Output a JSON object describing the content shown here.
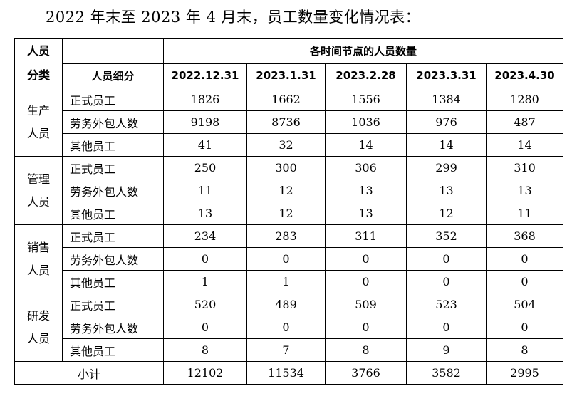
{
  "title": "2022 年末至 2023 年 4 月末，员工数量变化情况表：",
  "table": {
    "header": {
      "category_line1": "人员",
      "category_line2": "分类",
      "subcategory": "人员细分",
      "group": "各时间节点的人员数量",
      "dates": [
        "2022.12.31",
        "2023.1.31",
        "2023.2.28",
        "2023.3.31",
        "2023.4.30"
      ]
    },
    "groups": [
      {
        "line1": "生产",
        "line2": "人员",
        "rows": [
          {
            "label": "正式员工",
            "values": [
              "1826",
              "1662",
              "1556",
              "1384",
              "1280"
            ]
          },
          {
            "label": "劳务外包人数",
            "values": [
              "9198",
              "8736",
              "1036",
              "976",
              "487"
            ]
          },
          {
            "label": "其他员工",
            "values": [
              "41",
              "32",
              "14",
              "14",
              "14"
            ]
          }
        ]
      },
      {
        "line1": "管理",
        "line2": "人员",
        "rows": [
          {
            "label": "正式员工",
            "values": [
              "250",
              "300",
              "306",
              "299",
              "310"
            ]
          },
          {
            "label": "劳务外包人数",
            "values": [
              "11",
              "12",
              "13",
              "13",
              "13"
            ]
          },
          {
            "label": "其他员工",
            "values": [
              "13",
              "12",
              "13",
              "12",
              "11"
            ]
          }
        ]
      },
      {
        "line1": "销售",
        "line2": "人员",
        "rows": [
          {
            "label": "正式员工",
            "values": [
              "234",
              "283",
              "311",
              "352",
              "368"
            ]
          },
          {
            "label": "劳务外包人数",
            "values": [
              "0",
              "0",
              "0",
              "0",
              "0"
            ]
          },
          {
            "label": "其他员工",
            "values": [
              "1",
              "1",
              "0",
              "0",
              "0"
            ]
          }
        ]
      },
      {
        "line1": "研发",
        "line2": "人员",
        "rows": [
          {
            "label": "正式员工",
            "values": [
              "520",
              "489",
              "509",
              "523",
              "504"
            ]
          },
          {
            "label": "劳务外包人数",
            "values": [
              "0",
              "0",
              "0",
              "0",
              "0"
            ]
          },
          {
            "label": "其他员工",
            "values": [
              "8",
              "7",
              "8",
              "9",
              "8"
            ]
          }
        ]
      }
    ],
    "total": {
      "label": "小计",
      "values": [
        "12102",
        "11534",
        "3766",
        "3582",
        "2995"
      ]
    }
  }
}
